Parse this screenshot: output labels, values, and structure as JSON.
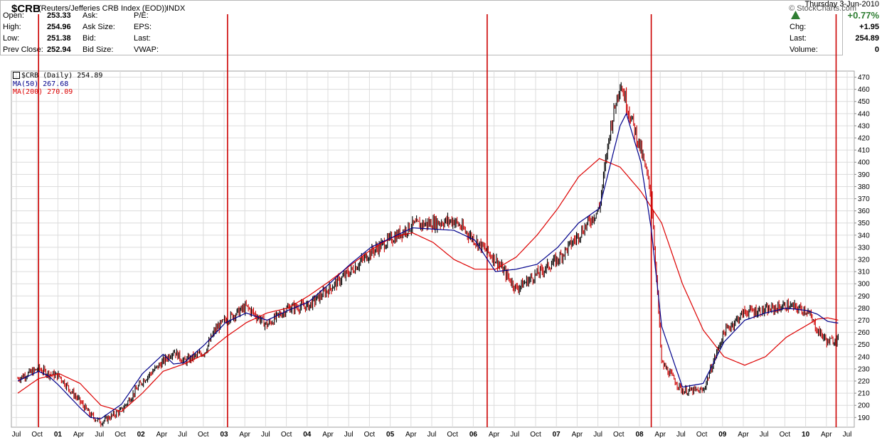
{
  "header": {
    "symbol": "$CRB",
    "description": "(Reuters/Jefferies CRB Index (EOD))",
    "exchange": "INDX",
    "watermark": "© StockCharts.com"
  },
  "quote": {
    "open_label": "Open:",
    "open": "253.33",
    "high_label": "High:",
    "high": "254.96",
    "low_label": "Low:",
    "low": "251.38",
    "prev_close_label": "Prev Close:",
    "prev_close": "252.94",
    "ask_label": "Ask:",
    "ask_size_label": "Ask Size:",
    "bid_label": "Bid:",
    "bid_size_label": "Bid Size:",
    "pe_label": "P/E:",
    "eps_label": "EPS:",
    "last_label_mid": "Last:",
    "vwap_label": "VWAP:",
    "date": "Thursday  3-Jun-2010",
    "pct_change": "+0.77%",
    "chg_label": "Chg:",
    "chg": "+1.95",
    "last_label": "Last:",
    "last": "254.89",
    "volume_label": "Volume:",
    "volume": "0"
  },
  "legend": {
    "price": "$CRB (Daily) 254.89",
    "ma50": "MA(50) 267.68",
    "ma200": "MA(200) 270.09"
  },
  "colors": {
    "price": "#000000",
    "down_bar": "#cc0000",
    "ma50": "#00008b",
    "ma200": "#dd0000",
    "vlines": "#cc0000",
    "grid": "#dcdcdc",
    "up_triangle": "#2e7d32"
  },
  "chart_data": {
    "type": "line",
    "title": "$CRB (Daily)",
    "x_tick_labels": [
      "Jul",
      "Oct",
      "01",
      "Apr",
      "Jul",
      "Oct",
      "02",
      "Apr",
      "Jul",
      "Oct",
      "03",
      "Apr",
      "Jul",
      "Oct",
      "04",
      "Apr",
      "Jul",
      "Oct",
      "05",
      "Apr",
      "Jul",
      "Oct",
      "06",
      "Apr",
      "Jul",
      "Oct",
      "07",
      "Apr",
      "Jul",
      "Oct",
      "08",
      "Apr",
      "Jul",
      "Oct",
      "09",
      "Apr",
      "Jul",
      "Oct",
      "10",
      "Apr",
      "Jul"
    ],
    "y_ticks": [
      190,
      200,
      210,
      220,
      230,
      240,
      250,
      260,
      270,
      280,
      290,
      300,
      310,
      320,
      330,
      340,
      350,
      360,
      370,
      380,
      390,
      400,
      410,
      420,
      430,
      440,
      450,
      460,
      470
    ],
    "ylim": [
      182,
      475
    ],
    "y_axis_side": "right",
    "grid": true,
    "series": [
      {
        "name": "$CRB (Daily)",
        "style": "price",
        "t": [
          0,
          0.5,
          1,
          1.5,
          2,
          2.5,
          3,
          3.5,
          4,
          5,
          5.5,
          6,
          7,
          7.5,
          8,
          9,
          9.5,
          10,
          11,
          12,
          13,
          14,
          15,
          16,
          17,
          19,
          21,
          23,
          24,
          25,
          26,
          27,
          28,
          28.5,
          29,
          30,
          30.5,
          31,
          32,
          33,
          34,
          35,
          36,
          37,
          38,
          38.5,
          39,
          39.5
        ],
        "v": [
          222,
          226,
          230,
          226,
          224,
          213,
          203,
          192,
          186,
          196,
          208,
          220,
          236,
          245,
          236,
          244,
          262,
          270,
          281,
          266,
          280,
          282,
          296,
          310,
          326,
          348,
          352,
          320,
          296,
          308,
          320,
          340,
          362,
          425,
          466,
          410,
          374,
          235,
          212,
          212,
          260,
          277,
          278,
          282,
          278,
          262,
          252,
          254.89
        ]
      },
      {
        "name": "MA(50)",
        "style": "ma50",
        "t": [
          0,
          1,
          1.5,
          2,
          2.5,
          3,
          3.5,
          4,
          5,
          6,
          7,
          7.5,
          8,
          9,
          10,
          11,
          12,
          13,
          14,
          15,
          16,
          17,
          19,
          21,
          22,
          23,
          24,
          25,
          26,
          27,
          28,
          29,
          29.3,
          30,
          30.5,
          31,
          32,
          33,
          34,
          35,
          36,
          37,
          38,
          38.5,
          39,
          39.5
        ],
        "v": [
          220,
          228,
          224,
          216,
          207,
          198,
          190,
          189,
          201,
          226,
          242,
          234,
          235,
          250,
          268,
          276,
          270,
          278,
          285,
          300,
          316,
          330,
          346,
          344,
          336,
          310,
          312,
          316,
          330,
          350,
          362,
          430,
          440,
          400,
          345,
          265,
          215,
          218,
          252,
          270,
          276,
          280,
          278,
          275,
          269,
          267.68
        ]
      },
      {
        "name": "MA(200)",
        "style": "ma200",
        "t": [
          0,
          1,
          2,
          3,
          4,
          5,
          6,
          7,
          8,
          9,
          10,
          11,
          12,
          13,
          14,
          15,
          16,
          17,
          18,
          19,
          20,
          21,
          22,
          23,
          24,
          25,
          26,
          27,
          28,
          29,
          30,
          31,
          32,
          33,
          34,
          35,
          36,
          37,
          38,
          38.5,
          39,
          39.5
        ],
        "v": [
          210,
          222,
          226,
          218,
          200,
          195,
          210,
          228,
          234,
          242,
          256,
          268,
          276,
          280,
          290,
          302,
          315,
          328,
          338,
          342,
          334,
          320,
          312,
          312,
          322,
          340,
          362,
          388,
          403,
          396,
          376,
          350,
          300,
          262,
          240,
          233,
          240,
          256,
          266,
          271,
          272,
          270.09
        ]
      }
    ],
    "markers": {
      "vertical_lines_at_t": [
        1.0,
        10.1,
        22.6,
        30.5,
        39.4
      ]
    }
  }
}
